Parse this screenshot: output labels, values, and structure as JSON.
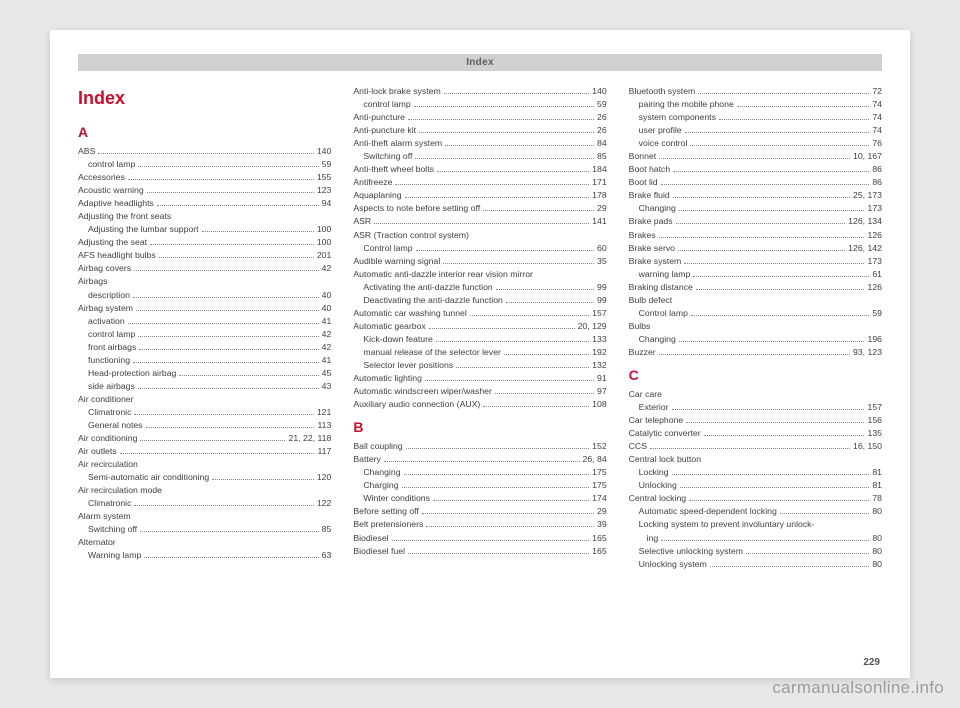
{
  "header": "Index",
  "title": "Index",
  "pageNumber": "229",
  "watermark": "carmanualsonline.info",
  "columns": [
    {
      "blocks": [
        {
          "type": "letter",
          "text": "A"
        },
        {
          "type": "entry",
          "label": "ABS",
          "page": "140"
        },
        {
          "type": "sub",
          "label": "control lamp",
          "page": "59"
        },
        {
          "type": "entry",
          "label": "Accessories",
          "page": "155"
        },
        {
          "type": "entry",
          "label": "Acoustic warning",
          "page": "123"
        },
        {
          "type": "entry",
          "label": "Adaptive headlights",
          "page": "94"
        },
        {
          "type": "plain",
          "label": "Adjusting the front seats"
        },
        {
          "type": "sub",
          "label": "Adjusting the lumbar support",
          "page": "100"
        },
        {
          "type": "entry",
          "label": "Adjusting the seat",
          "page": "100"
        },
        {
          "type": "entry",
          "label": "AFS headlight bulbs",
          "page": "201"
        },
        {
          "type": "entry",
          "label": "Airbag covers",
          "page": "42"
        },
        {
          "type": "plain",
          "label": "Airbags"
        },
        {
          "type": "sub",
          "label": "description",
          "page": "40"
        },
        {
          "type": "entry",
          "label": "Airbag system",
          "page": "40"
        },
        {
          "type": "sub",
          "label": "activation",
          "page": "41"
        },
        {
          "type": "sub",
          "label": "control lamp",
          "page": "42"
        },
        {
          "type": "sub",
          "label": "front airbags",
          "page": "42"
        },
        {
          "type": "sub",
          "label": "functioning",
          "page": "41"
        },
        {
          "type": "sub",
          "label": "Head-protection airbag",
          "page": "45"
        },
        {
          "type": "sub",
          "label": "side airbags",
          "page": "43"
        },
        {
          "type": "plain",
          "label": "Air conditioner"
        },
        {
          "type": "sub",
          "label": "Climatronic",
          "page": "121"
        },
        {
          "type": "sub",
          "label": "General notes",
          "page": "113"
        },
        {
          "type": "entry",
          "label": "Air conditioning",
          "page": "21, 22, 118"
        },
        {
          "type": "entry",
          "label": "Air outlets",
          "page": "117"
        },
        {
          "type": "plain",
          "label": "Air recirculation"
        },
        {
          "type": "sub",
          "label": "Semi-automatic air conditioning",
          "page": "120"
        },
        {
          "type": "plain",
          "label": "Air recirculation mode"
        },
        {
          "type": "sub",
          "label": "Climatronic",
          "page": "122"
        },
        {
          "type": "plain",
          "label": "Alarm system"
        },
        {
          "type": "sub",
          "label": "Switching off",
          "page": "85"
        },
        {
          "type": "plain",
          "label": "Alternator"
        },
        {
          "type": "sub",
          "label": "Warning lamp",
          "page": "63"
        }
      ]
    },
    {
      "blocks": [
        {
          "type": "entry",
          "label": "Anti-lock brake system",
          "page": "140"
        },
        {
          "type": "sub",
          "label": "control lamp",
          "page": "59"
        },
        {
          "type": "entry",
          "label": "Anti-puncture",
          "page": "26"
        },
        {
          "type": "entry",
          "label": "Anti-puncture kit",
          "page": "26"
        },
        {
          "type": "entry",
          "label": "Anti-theft alarm system",
          "page": "84"
        },
        {
          "type": "sub",
          "label": "Switching off",
          "page": "85"
        },
        {
          "type": "entry",
          "label": "Anti-theft wheel bolts",
          "page": "184"
        },
        {
          "type": "entry",
          "label": "Antifreeze",
          "page": "171"
        },
        {
          "type": "entry",
          "label": "Aquaplaning",
          "page": "178"
        },
        {
          "type": "entry",
          "label": "Aspects to note before setting off",
          "page": "29"
        },
        {
          "type": "entry",
          "label": "ASR",
          "page": "141"
        },
        {
          "type": "plain",
          "label": "ASR (Traction control system)"
        },
        {
          "type": "sub",
          "label": "Control lamp",
          "page": "60"
        },
        {
          "type": "entry",
          "label": "Audible warning signal",
          "page": "35"
        },
        {
          "type": "plain",
          "label": "Automatic anti-dazzle interior rear vision mirror"
        },
        {
          "type": "sub",
          "label": "Activating the anti-dazzle function",
          "page": "99"
        },
        {
          "type": "sub",
          "label": "Deactivating the anti-dazzle function",
          "page": "99"
        },
        {
          "type": "entry",
          "label": "Automatic car washing tunnel",
          "page": "157"
        },
        {
          "type": "entry",
          "label": "Automatic gearbox",
          "page": "20, 129"
        },
        {
          "type": "sub",
          "label": "Kick-down feature",
          "page": "133"
        },
        {
          "type": "sub",
          "label": "manual release of the selector lever",
          "page": "192"
        },
        {
          "type": "sub",
          "label": "Selector lever positions",
          "page": "132"
        },
        {
          "type": "entry",
          "label": "Automatic lighting",
          "page": "91"
        },
        {
          "type": "entry",
          "label": "Automatic windscreen wiper/washer",
          "page": "97"
        },
        {
          "type": "entry",
          "label": "Auxiliary audio connection (AUX)",
          "page": "108"
        },
        {
          "type": "letter",
          "text": "B"
        },
        {
          "type": "entry",
          "label": "Ball coupling",
          "page": "152"
        },
        {
          "type": "entry",
          "label": "Battery",
          "page": "26, 84"
        },
        {
          "type": "sub",
          "label": "Changing",
          "page": "175"
        },
        {
          "type": "sub",
          "label": "Charging",
          "page": "175"
        },
        {
          "type": "sub",
          "label": "Winter conditions",
          "page": "174"
        },
        {
          "type": "entry",
          "label": "Before setting off",
          "page": "29"
        },
        {
          "type": "entry",
          "label": "Belt pretensioners",
          "page": "39"
        },
        {
          "type": "entry",
          "label": "Biodiesel",
          "page": "165"
        },
        {
          "type": "entry",
          "label": "Biodiesel fuel",
          "page": "165"
        }
      ]
    },
    {
      "blocks": [
        {
          "type": "entry",
          "label": "Bluetooth system",
          "page": "72"
        },
        {
          "type": "sub",
          "label": "pairing the mobile phone",
          "page": "74"
        },
        {
          "type": "sub",
          "label": "system components",
          "page": "74"
        },
        {
          "type": "sub",
          "label": "user profile",
          "page": "74"
        },
        {
          "type": "sub",
          "label": "voice control",
          "page": "76"
        },
        {
          "type": "entry",
          "label": "Bonnet",
          "page": "10, 167"
        },
        {
          "type": "entry",
          "label": "Boot hatch",
          "page": "86"
        },
        {
          "type": "entry",
          "label": "Boot lid",
          "page": "86"
        },
        {
          "type": "entry",
          "label": "Brake fluid",
          "page": "25, 173"
        },
        {
          "type": "sub",
          "label": "Changing",
          "page": "173"
        },
        {
          "type": "entry",
          "label": "Brake pads",
          "page": "126, 134"
        },
        {
          "type": "entry",
          "label": "Brakes",
          "page": "126"
        },
        {
          "type": "entry",
          "label": "Brake servo",
          "page": "126, 142"
        },
        {
          "type": "entry",
          "label": "Brake system",
          "page": "173"
        },
        {
          "type": "sub",
          "label": "warning lamp",
          "page": "61"
        },
        {
          "type": "entry",
          "label": "Braking distance",
          "page": "126"
        },
        {
          "type": "plain",
          "label": "Bulb defect"
        },
        {
          "type": "sub",
          "label": "Control lamp",
          "page": "59"
        },
        {
          "type": "plain",
          "label": "Bulbs"
        },
        {
          "type": "sub",
          "label": "Changing",
          "page": "196"
        },
        {
          "type": "entry",
          "label": "Buzzer",
          "page": "93, 123"
        },
        {
          "type": "letter",
          "text": "C"
        },
        {
          "type": "plain",
          "label": "Car care"
        },
        {
          "type": "sub",
          "label": "Exterior",
          "page": "157"
        },
        {
          "type": "entry",
          "label": "Car telephone",
          "page": "156"
        },
        {
          "type": "entry",
          "label": "Catalytic converter",
          "page": "135"
        },
        {
          "type": "entry",
          "label": "CCS",
          "page": "16, 150"
        },
        {
          "type": "plain",
          "label": "Central lock button"
        },
        {
          "type": "sub",
          "label": "Locking",
          "page": "81"
        },
        {
          "type": "sub",
          "label": "Unlocking",
          "page": "81"
        },
        {
          "type": "entry",
          "label": "Central locking",
          "page": "78"
        },
        {
          "type": "sub",
          "label": "Automatic speed-dependent locking",
          "page": "80"
        },
        {
          "type": "subplain",
          "label": "Locking system to prevent involuntary unlock-"
        },
        {
          "type": "sub2",
          "label": "ing",
          "page": "80"
        },
        {
          "type": "sub",
          "label": "Selective unlocking system",
          "page": "80"
        },
        {
          "type": "sub",
          "label": "Unlocking system",
          "page": "80"
        }
      ]
    }
  ]
}
